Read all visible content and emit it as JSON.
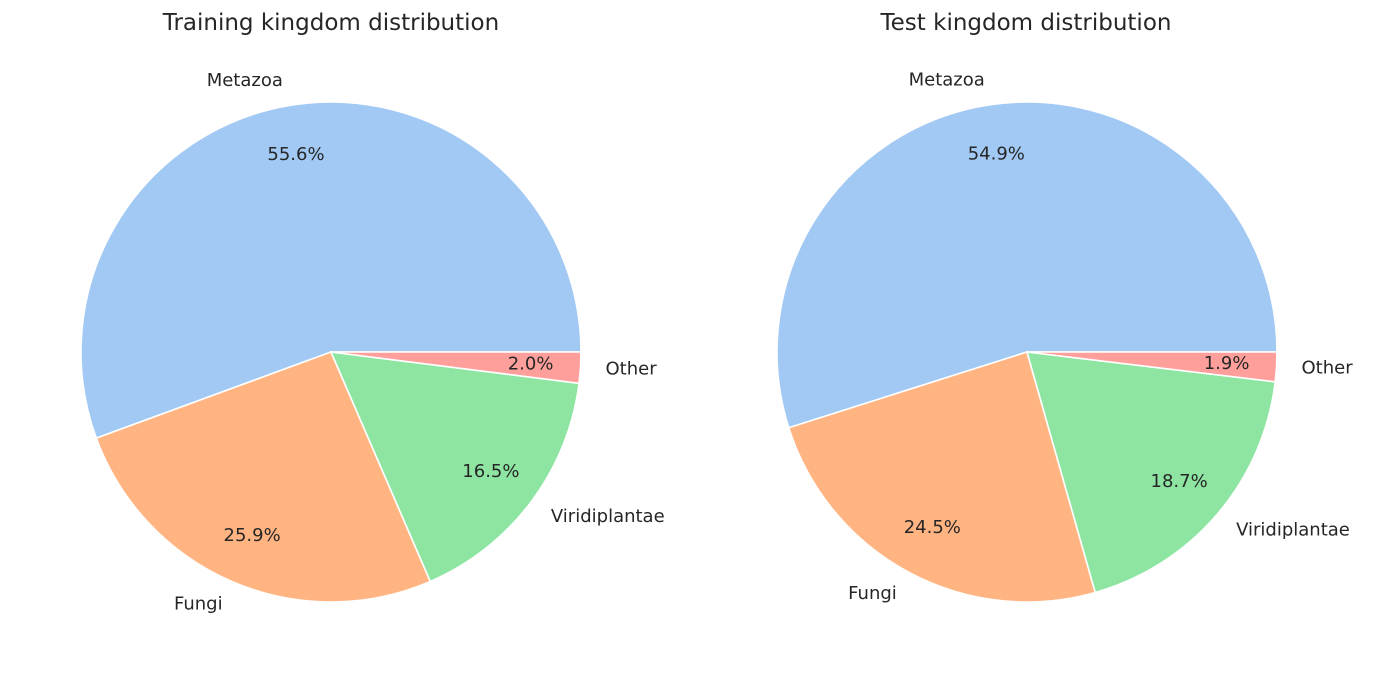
{
  "chart_data": [
    {
      "type": "pie",
      "title": "Training kingdom distribution",
      "start_angle_deg": 0,
      "direction": "counterclockwise",
      "slices": [
        {
          "label": "Metazoa",
          "value": 55.6,
          "pct_label": "55.6%",
          "color": "#a1c9f4"
        },
        {
          "label": "Fungi",
          "value": 25.9,
          "pct_label": "25.9%",
          "color": "#ffb482"
        },
        {
          "label": "Viridiplantae",
          "value": 16.5,
          "pct_label": "16.5%",
          "color": "#8de5a1"
        },
        {
          "label": "Other",
          "value": 2.0,
          "pct_label": "2.0%",
          "color": "#ff9f9b"
        }
      ]
    },
    {
      "type": "pie",
      "title": "Test kingdom distribution",
      "start_angle_deg": 0,
      "direction": "counterclockwise",
      "slices": [
        {
          "label": "Metazoa",
          "value": 54.9,
          "pct_label": "54.9%",
          "color": "#a1c9f4"
        },
        {
          "label": "Fungi",
          "value": 24.5,
          "pct_label": "24.5%",
          "color": "#ffb482"
        },
        {
          "label": "Viridiplantae",
          "value": 18.7,
          "pct_label": "18.7%",
          "color": "#8de5a1"
        },
        {
          "label": "Other",
          "value": 1.9,
          "pct_label": "1.9%",
          "color": "#ff9f9b"
        }
      ]
    }
  ]
}
